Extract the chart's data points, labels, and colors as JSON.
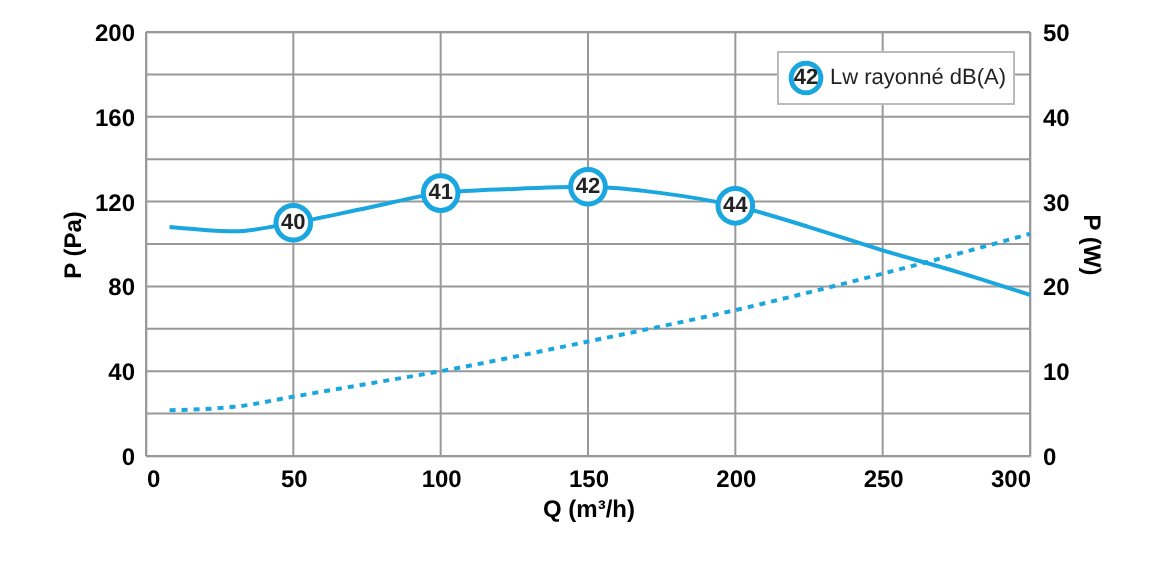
{
  "chart_data": {
    "type": "line",
    "xlabel": "Q (m³/h)",
    "ylabel": "P (Pa)",
    "y2label": "P (W)",
    "xlim": [
      0,
      300
    ],
    "xticks": [
      0,
      50,
      100,
      150,
      200,
      250,
      300
    ],
    "ylim": [
      0,
      200
    ],
    "yticks": [
      0,
      {
        "value": 20,
        "label": null
      },
      40,
      {
        "value": 60,
        "label": null
      },
      80,
      {
        "value": 100,
        "label": null
      },
      120,
      {
        "value": 140,
        "label": null
      },
      160,
      {
        "value": 180,
        "label": null
      },
      200
    ],
    "y2lim": [
      0,
      50
    ],
    "y2ticks": [
      0,
      10,
      20,
      30,
      40,
      50
    ],
    "grid": true,
    "legend": "top right",
    "annotations": [
      "42",
      {
        "text": "40",
        "x": 50,
        "y": 110
      },
      {
        "text": "41",
        "x": 100,
        "y": 124
      },
      {
        "text": "42",
        "x": 150,
        "y": 127
      },
      {
        "text": "44",
        "x": 200,
        "y": 118
      }
    ],
    "series": [
      {
        "color": "#1aa7e0",
        "line_style": "solid",
        "x": [
          8,
          30,
          50,
          75,
          100,
          125,
          150,
          175,
          200,
          225,
          250,
          275,
          300
        ],
        "values": [
          108,
          106,
          110,
          117,
          124,
          126,
          127,
          124,
          118,
          108,
          97,
          87,
          76
        ]
      },
      {
        "axis": "y2",
        "color": "#1aa7e0",
        "line_style": "dotted",
        "x": [
          8,
          30,
          50,
          75,
          100,
          125,
          150,
          175,
          200,
          225,
          250,
          275,
          300
        ],
        "values": [
          5.4,
          5.8,
          7,
          8.5,
          10,
          11.7,
          13.5,
          15.3,
          17.2,
          19.3,
          21.5,
          23.8,
          26.2
        ]
      },
      {
        "type": "scatter",
        "name": "Lw rayonné dB(A)",
        "color": "#1aa7e0",
        "marker": "circle",
        "x": [
          50,
          100,
          150,
          200
        ],
        "values": [
          110,
          124,
          127,
          118
        ]
      }
    ]
  }
}
